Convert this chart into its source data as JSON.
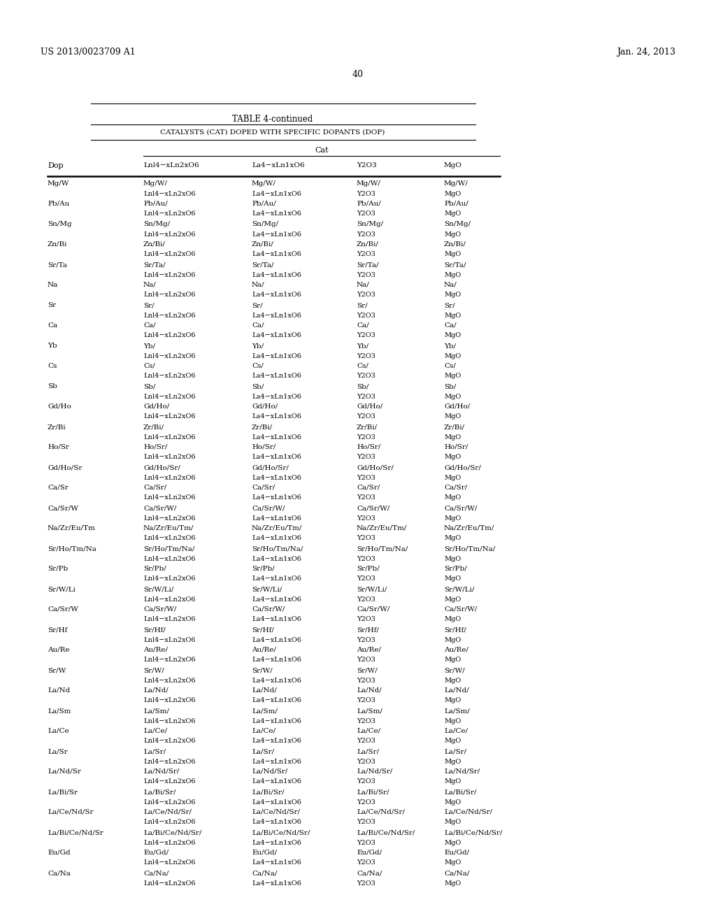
{
  "header_left": "US 2013/0023709 A1",
  "header_right": "Jan. 24, 2013",
  "page_number": "40",
  "table_title": "TABLE 4-continued",
  "table_subtitle": "CATALYSTS (CAT) DOPED WITH SPECIFIC DOPANTS (DOP)",
  "col_header_cat": "Cat",
  "col_header_dop": "Dop",
  "col_header_2": "Lnl4−xLn2xO6",
  "col_header_3": "La4−xLn1xO6",
  "col_header_4": "Y2O3",
  "col_header_5": "MgO",
  "formula_row_2": "Lnl4−xLn2xO6",
  "formula_row_3": "La4−xLn1xO6",
  "formula_row_4": "Y2O3",
  "formula_row_5": "MgO",
  "rows": [
    [
      "Mg/W",
      "Mg/W/",
      "Mg/W/",
      "Mg/W/",
      "Mg/W/"
    ],
    [
      "Pb/Au",
      "Pb/Au/",
      "Pb/Au/",
      "Pb/Au/",
      "Pb/Au/"
    ],
    [
      "Sn/Mg",
      "Sn/Mg/",
      "Sn/Mg/",
      "Sn/Mg/",
      "Sn/Mg/"
    ],
    [
      "Zn/Bi",
      "Zn/Bi/",
      "Zn/Bi/",
      "Zn/Bi/",
      "Zn/Bi/"
    ],
    [
      "Sr/Ta",
      "Sr/Ta/",
      "Sr/Ta/",
      "Sr/Ta/",
      "Sr/Ta/"
    ],
    [
      "Na",
      "Na/",
      "Na/",
      "Na/",
      "Na/"
    ],
    [
      "Sr",
      "Sr/",
      "Sr/",
      "Sr/",
      "Sr/"
    ],
    [
      "Ca",
      "Ca/",
      "Ca/",
      "Ca/",
      "Ca/"
    ],
    [
      "Yb",
      "Yb/",
      "Yb/",
      "Yb/",
      "Yb/"
    ],
    [
      "Cs",
      "Cs/",
      "Cs/",
      "Cs/",
      "Cs/"
    ],
    [
      "Sb",
      "Sb/",
      "Sb/",
      "Sb/",
      "Sb/"
    ],
    [
      "Gd/Ho",
      "Gd/Ho/",
      "Gd/Ho/",
      "Gd/Ho/",
      "Gd/Ho/"
    ],
    [
      "Zr/Bi",
      "Zr/Bi/",
      "Zr/Bi/",
      "Zr/Bi/",
      "Zr/Bi/"
    ],
    [
      "Ho/Sr",
      "Ho/Sr/",
      "Ho/Sr/",
      "Ho/Sr/",
      "Ho/Sr/"
    ],
    [
      "Gd/Ho/Sr",
      "Gd/Ho/Sr/",
      "Gd/Ho/Sr/",
      "Gd/Ho/Sr/",
      "Gd/Ho/Sr/"
    ],
    [
      "Ca/Sr",
      "Ca/Sr/",
      "Ca/Sr/",
      "Ca/Sr/",
      "Ca/Sr/"
    ],
    [
      "Ca/Sr/W",
      "Ca/Sr/W/",
      "Ca/Sr/W/",
      "Ca/Sr/W/",
      "Ca/Sr/W/"
    ],
    [
      "Na/Zr/Eu/Tm",
      "Na/Zr/Eu/Tm/",
      "Na/Zr/Eu/Tm/",
      "Na/Zr/Eu/Tm/",
      "Na/Zr/Eu/Tm/"
    ],
    [
      "Sr/Ho/Tm/Na",
      "Sr/Ho/Tm/Na/",
      "Sr/Ho/Tm/Na/",
      "Sr/Ho/Tm/Na/",
      "Sr/Ho/Tm/Na/"
    ],
    [
      "Sr/Pb",
      "Sr/Pb/",
      "Sr/Pb/",
      "Sr/Pb/",
      "Sr/Pb/"
    ],
    [
      "Sr/W/Li",
      "Sr/W/Li/",
      "Sr/W/Li/",
      "Sr/W/Li/",
      "Sr/W/Li/"
    ],
    [
      "Ca/Sr/W",
      "Ca/Sr/W/",
      "Ca/Sr/W/",
      "Ca/Sr/W/",
      "Ca/Sr/W/"
    ],
    [
      "Sr/Hf",
      "Sr/Hf/",
      "Sr/Hf/",
      "Sr/Hf/",
      "Sr/Hf/"
    ],
    [
      "Au/Re",
      "Au/Re/",
      "Au/Re/",
      "Au/Re/",
      "Au/Re/"
    ],
    [
      "Sr/W",
      "Sr/W/",
      "Sr/W/",
      "Sr/W/",
      "Sr/W/"
    ],
    [
      "La/Nd",
      "La/Nd/",
      "La/Nd/",
      "La/Nd/",
      "La/Nd/"
    ],
    [
      "La/Sm",
      "La/Sm/",
      "La/Sm/",
      "La/Sm/",
      "La/Sm/"
    ],
    [
      "La/Ce",
      "La/Ce/",
      "La/Ce/",
      "La/Ce/",
      "La/Ce/"
    ],
    [
      "La/Sr",
      "La/Sr/",
      "La/Sr/",
      "La/Sr/",
      "La/Sr/"
    ],
    [
      "La/Nd/Sr",
      "La/Nd/Sr/",
      "La/Nd/Sr/",
      "La/Nd/Sr/",
      "La/Nd/Sr/"
    ],
    [
      "La/Bi/Sr",
      "La/Bi/Sr/",
      "La/Bi/Sr/",
      "La/Bi/Sr/",
      "La/Bi/Sr/"
    ],
    [
      "La/Ce/Nd/Sr",
      "La/Ce/Nd/Sr/",
      "La/Ce/Nd/Sr/",
      "La/Ce/Nd/Sr/",
      "La/Ce/Nd/Sr/"
    ],
    [
      "La/Bi/Ce/Nd/Sr",
      "La/Bi/Ce/Nd/Sr/",
      "La/Bi/Ce/Nd/Sr/",
      "La/Bi/Ce/Nd/Sr/",
      "La/Bi/Ce/Nd/Sr/"
    ],
    [
      "Eu/Gd",
      "Eu/Gd/",
      "Eu/Gd/",
      "Eu/Gd/",
      "Eu/Gd/"
    ],
    [
      "Ca/Na",
      "Ca/Na/",
      "Ca/Na/",
      "Ca/Na/",
      "Ca/Na/"
    ]
  ],
  "bg_color": "#ffffff",
  "text_color": "#000000"
}
